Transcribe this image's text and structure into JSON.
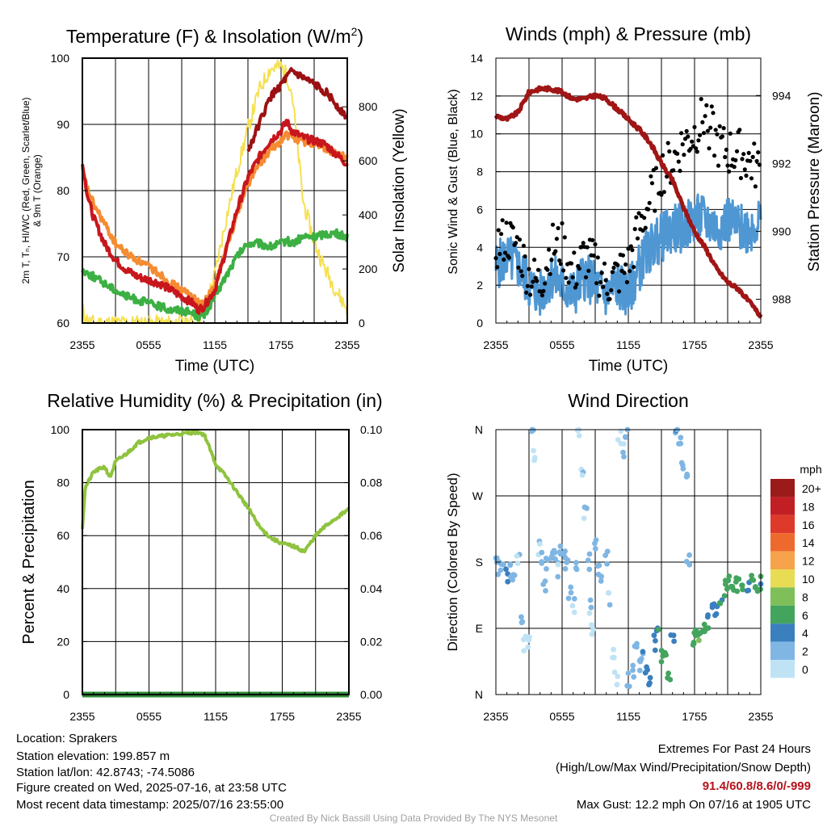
{
  "colors": {
    "temp_2m": "#c8161d",
    "dewpoint": "#3cb043",
    "heat_index": "#9b1113",
    "temp_9m": "#f58b32",
    "solar": "#f5e050",
    "wind": "#4f97d3",
    "gust": "#000000",
    "pressure": "#a01515",
    "rh": "#8fc33f",
    "precip": "#2e8b3a"
  },
  "charts": [
    {
      "id": "temp",
      "title_pre": "Temperature (F) & Insolation (W/m",
      "title_sup": "2",
      "title_post": ")",
      "xlabel": "Time (UTC)",
      "ylabel_left_lines": [
        "2m T, Tₙ, HI/WC (Red, Green, Scarlet/Blue)",
        "& 9m T (Orange)"
      ],
      "ylabel_right": "Solar Insolation (Yellow)",
      "yticks_left": [
        "60",
        "70",
        "80",
        "90",
        "100"
      ],
      "yticks_right": [
        "0",
        "200",
        "400",
        "600",
        "800"
      ],
      "xticks": [
        "2355",
        "0555",
        "1155",
        "1755",
        "2355"
      ]
    },
    {
      "id": "wind",
      "title": "Winds (mph) & Pressure (mb)",
      "xlabel": "Time (UTC)",
      "ylabel_left": "Sonic Wind & Gust (Blue, Black)",
      "ylabel_right": "Station Pressure (Maroon)",
      "yticks_left": [
        "0",
        "2",
        "4",
        "6",
        "8",
        "10",
        "12",
        "14"
      ],
      "yticks_right": [
        "988",
        "990",
        "992",
        "994"
      ],
      "xticks": [
        "2355",
        "0555",
        "1155",
        "1755",
        "2355"
      ]
    },
    {
      "id": "rh",
      "title": "Relative Humidity (%) & Precipitation (in)",
      "ylabel_left": "Percent & Precipitation",
      "yticks_left": [
        "0",
        "20",
        "40",
        "60",
        "80",
        "100"
      ],
      "yticks_right": [
        "0.00",
        "0.02",
        "0.04",
        "0.06",
        "0.08",
        "0.10"
      ],
      "xticks": [
        "2355",
        "0555",
        "1155",
        "1755",
        "2355"
      ]
    },
    {
      "id": "dir",
      "title": "Wind Direction",
      "ylabel_left": "Direction (Colored By Speed)",
      "yticks_left": [
        "N",
        "E",
        "S",
        "W",
        "N"
      ],
      "xticks": [
        "2355",
        "0555",
        "1155",
        "1755",
        "2355"
      ],
      "legend_title": "mph",
      "legend_labels": [
        "20+",
        "18",
        "16",
        "14",
        "12",
        "10",
        "8",
        "6",
        "4",
        "2",
        "0"
      ],
      "legend_colors": [
        "#9b1a1a",
        "#c21f25",
        "#de3a2b",
        "#ee6a2c",
        "#f6a34b",
        "#e8dc55",
        "#7fbf59",
        "#43a45e",
        "#3a7fbe",
        "#7fb6e3",
        "#bfe3f5"
      ]
    }
  ],
  "chart_data": [
    {
      "type": "line",
      "title": "Temperature (F) & Insolation (W/m2)",
      "xlabel": "Time (UTC)",
      "ylabel": "2m T, Td, HI/WC (Red, Green, Scarlet/Blue) & 9m T (Orange)",
      "y2label": "Solar Insolation (Yellow)",
      "x_hours": [
        0,
        0.5,
        1,
        2,
        3,
        4,
        5,
        6,
        7,
        8,
        9,
        10,
        10.5,
        11,
        12,
        13,
        14,
        15,
        16,
        17,
        18,
        18.5,
        19,
        20,
        21,
        22,
        23,
        24
      ],
      "x_tick_labels": [
        "2355",
        "0555",
        "1155",
        "1755",
        "2355"
      ],
      "ylim": [
        60,
        100
      ],
      "y2lim": [
        0,
        980
      ],
      "series": [
        {
          "name": "2m T",
          "axis": "left",
          "values": [
            84,
            79,
            76,
            72,
            69.5,
            68,
            67,
            66.5,
            66,
            65,
            64,
            63,
            62,
            62.5,
            65,
            71,
            77,
            82,
            85,
            87.5,
            89,
            90.5,
            89,
            88,
            87.5,
            87,
            85.5,
            84
          ]
        },
        {
          "name": "9m T",
          "axis": "left",
          "values": [
            83,
            80,
            78,
            75,
            72,
            70.5,
            69.5,
            68.5,
            67.5,
            66,
            65,
            64,
            63,
            63,
            65.5,
            71,
            76.5,
            81,
            84,
            86,
            87.5,
            88.5,
            88,
            87.5,
            87,
            86.5,
            85.5,
            85
          ]
        },
        {
          "name": "Heat index",
          "axis": "left",
          "values": [
            null,
            null,
            null,
            null,
            null,
            null,
            null,
            null,
            null,
            null,
            null,
            null,
            null,
            null,
            null,
            null,
            null,
            86,
            90,
            94,
            96,
            97,
            98,
            97,
            96,
            95,
            93,
            91
          ]
        },
        {
          "name": "Dewpoint",
          "axis": "left",
          "values": [
            68,
            67.5,
            67,
            66,
            65,
            64,
            63.5,
            63,
            62.5,
            62,
            62,
            61.5,
            61,
            61,
            64,
            67,
            70,
            72,
            72,
            71.5,
            72,
            72.5,
            72,
            73,
            73,
            73.5,
            73.5,
            73
          ]
        },
        {
          "name": "Solar",
          "axis": "right",
          "values": [
            50,
            5,
            0,
            0,
            0,
            0,
            0,
            0,
            0,
            0,
            0,
            0,
            5,
            40,
            180,
            380,
            560,
            720,
            860,
            940,
            950,
            920,
            850,
            450,
            300,
            200,
            120,
            50
          ]
        }
      ]
    },
    {
      "type": "line",
      "title": "Winds (mph) & Pressure (mb)",
      "xlabel": "Time (UTC)",
      "ylabel": "Sonic Wind & Gust (Blue, Black)",
      "y2label": "Station Pressure (Maroon)",
      "x_tick_labels": [
        "2355",
        "0555",
        "1155",
        "1755",
        "2355"
      ],
      "ylim": [
        0,
        14
      ],
      "y2lim": [
        987.3,
        995.1
      ],
      "series": [
        {
          "name": "Wind",
          "axis": "left",
          "x_hours": [
            0,
            1,
            2,
            3,
            4,
            5,
            6,
            7,
            8,
            9,
            10,
            11,
            12,
            13,
            14,
            15,
            16,
            17,
            18,
            19,
            20,
            21,
            22,
            23,
            24
          ],
          "values": [
            3,
            3.5,
            3,
            2,
            1.5,
            2.5,
            2,
            1.5,
            2.5,
            2,
            1.5,
            2,
            1.5,
            3,
            4,
            4.5,
            5,
            5,
            5.5,
            5.5,
            5,
            5.5,
            5,
            5,
            5.5
          ]
        },
        {
          "name": "Gust",
          "axis": "left",
          "x_hours": [
            0,
            1,
            2,
            3,
            4,
            5,
            6,
            7,
            8,
            9,
            10,
            11,
            12,
            13,
            14,
            15,
            16,
            17,
            18,
            19,
            20,
            21,
            22,
            23,
            24
          ],
          "values": [
            4,
            4.5,
            4,
            2.5,
            2,
            4,
            4,
            2.5,
            3.5,
            3,
            2,
            2.5,
            3,
            5,
            6.5,
            8,
            8.5,
            9.5,
            10,
            11,
            9.5,
            9,
            9,
            8.5,
            8
          ]
        },
        {
          "name": "Station pressure",
          "axis": "right",
          "x_hours": [
            0,
            1,
            2,
            3,
            4,
            5,
            6,
            7,
            8,
            9,
            10,
            11,
            12,
            13,
            14,
            15,
            16,
            17,
            18,
            19,
            20,
            21,
            22,
            24
          ],
          "values": [
            993.4,
            993.3,
            993.5,
            994.1,
            994.2,
            994.2,
            994.1,
            993.9,
            993.9,
            994.0,
            993.9,
            993.6,
            993.3,
            993.0,
            992.6,
            992.0,
            991.5,
            990.7,
            990.0,
            989.5,
            988.9,
            988.5,
            988.3,
            987.5
          ]
        }
      ]
    },
    {
      "type": "line",
      "title": "Relative Humidity (%) & Precipitation (in)",
      "ylabel": "Percent & Precipitation",
      "x_tick_labels": [
        "2355",
        "0555",
        "1155",
        "1755",
        "2355"
      ],
      "ylim": [
        0,
        100
      ],
      "y2lim": [
        0,
        0.1
      ],
      "series": [
        {
          "name": "RH",
          "axis": "left",
          "x_hours": [
            0,
            0.25,
            0.5,
            1,
            1.5,
            2,
            2.5,
            3,
            4,
            5,
            6,
            7,
            8,
            9,
            10,
            10.5,
            11,
            12,
            13,
            14,
            15,
            16,
            17,
            18,
            19,
            20,
            21,
            22,
            23,
            24
          ],
          "values": [
            63,
            78,
            80,
            84,
            85,
            86,
            82,
            88,
            91,
            95,
            97,
            97.5,
            98,
            98.5,
            99,
            99,
            98,
            87,
            82,
            76,
            70,
            63,
            59,
            57,
            56,
            54,
            60,
            64,
            67,
            70
          ]
        },
        {
          "name": "Precipitation",
          "axis": "right",
          "x_hours": [
            0,
            24
          ],
          "values": [
            0,
            0
          ]
        }
      ]
    },
    {
      "type": "scatter",
      "title": "Wind Direction",
      "ylabel": "Direction (Colored By Speed)",
      "x_tick_labels": [
        "2355",
        "0555",
        "1155",
        "1755",
        "2355"
      ],
      "ylim": [
        0,
        360
      ],
      "y_tick_labels": [
        "N",
        "E",
        "S",
        "W",
        "N"
      ],
      "colorbar_title": "mph",
      "colorbar_labels": [
        "20+",
        "18",
        "16",
        "14",
        "12",
        "10",
        "8",
        "6",
        "4",
        "2",
        "0"
      ],
      "points": [
        [
          0,
          190,
          2
        ],
        [
          0.3,
          170,
          2
        ],
        [
          0.6,
          175,
          1.5
        ],
        [
          1,
          160,
          3
        ],
        [
          1.3,
          170,
          2
        ],
        [
          1.6,
          165,
          2
        ],
        [
          2,
          180,
          1
        ],
        [
          2.3,
          100,
          1.5
        ],
        [
          2.6,
          70,
          0.5
        ],
        [
          2.9,
          75,
          1
        ],
        [
          3.3,
          350,
          1
        ],
        [
          3.5,
          325,
          0.5
        ],
        [
          3.9,
          200,
          1
        ],
        [
          4.2,
          185,
          2
        ],
        [
          4.4,
          150,
          1.5
        ],
        [
          4.7,
          175,
          2.5
        ],
        [
          5.1,
          195,
          3
        ],
        [
          5.3,
          190,
          2
        ],
        [
          5.6,
          170,
          1
        ],
        [
          5.9,
          200,
          2
        ],
        [
          6.2,
          190,
          2.5
        ],
        [
          6.4,
          175,
          1.5
        ],
        [
          6.7,
          140,
          1.5
        ],
        [
          7,
          120,
          1
        ],
        [
          7.2,
          180,
          2
        ],
        [
          7.5,
          360,
          0.5
        ],
        [
          7.8,
          300,
          1
        ],
        [
          8.1,
          250,
          1
        ],
        [
          8.4,
          180,
          1.5
        ],
        [
          8.6,
          120,
          1
        ],
        [
          8.8,
          90,
          0.5
        ],
        [
          9.1,
          200,
          2
        ],
        [
          9.3,
          170,
          2.5
        ],
        [
          9.6,
          150,
          2
        ],
        [
          10,
          185,
          1.5
        ],
        [
          10.3,
          130,
          1
        ],
        [
          10.6,
          60,
          0.5
        ],
        [
          10.9,
          20,
          0.5
        ],
        [
          11.2,
          350,
          1
        ],
        [
          11.5,
          330,
          1
        ],
        [
          11.8,
          360,
          2
        ],
        [
          12,
          20,
          2
        ],
        [
          12.4,
          30,
          3
        ],
        [
          12.7,
          60,
          2.5
        ],
        [
          13,
          40,
          3
        ],
        [
          13.3,
          55,
          3
        ],
        [
          13.6,
          35,
          4
        ],
        [
          14,
          20,
          3.5
        ],
        [
          14.3,
          70,
          4
        ],
        [
          14.6,
          80,
          5
        ],
        [
          15,
          50,
          5.5
        ],
        [
          15.3,
          60,
          6
        ],
        [
          15.7,
          30,
          5
        ],
        [
          16,
          75,
          4
        ],
        [
          16.3,
          360,
          3
        ],
        [
          16.6,
          350,
          2.5
        ],
        [
          16.9,
          310,
          2
        ],
        [
          17.2,
          300,
          2
        ],
        [
          17.4,
          180,
          2
        ],
        [
          17.8,
          70,
          5
        ],
        [
          18.1,
          90,
          6
        ],
        [
          18.4,
          80,
          7
        ],
        [
          18.7,
          95,
          6
        ],
        [
          19,
          85,
          6.5
        ],
        [
          19.3,
          100,
          5
        ],
        [
          19.7,
          120,
          4
        ],
        [
          20,
          110,
          3.5
        ],
        [
          20.4,
          130,
          5
        ],
        [
          20.7,
          145,
          6
        ],
        [
          21,
          150,
          7
        ],
        [
          21.3,
          148,
          6.5
        ],
        [
          21.7,
          150,
          6
        ],
        [
          22,
          150,
          5.5
        ],
        [
          22.4,
          149,
          6
        ],
        [
          22.8,
          150,
          5
        ],
        [
          23.2,
          151,
          5.5
        ],
        [
          23.6,
          150,
          6
        ],
        [
          24,
          152,
          5
        ]
      ]
    }
  ],
  "info": {
    "location": "Location: Sprakers",
    "elevation": "Station elevation: 199.857 m",
    "latlon": "Station lat/lon: 42.8743; -74.5086",
    "created": "Figure created on Wed, 2025-07-16, at 23:58 UTC",
    "recent": "Most recent data timestamp: 2025/07/16 23:55:00"
  },
  "extremes": {
    "heading": "Extremes For Past 24 Hours",
    "subheading": "(High/Low/Max Wind/Precipitation/Snow Depth)",
    "values": "91.4/60.8/8.6/0/-999",
    "gust": "Max Gust: 12.2 mph On 07/16 at 1905 UTC"
  },
  "credit": "Created By Nick Bassill Using Data Provided By The NYS Mesonet"
}
